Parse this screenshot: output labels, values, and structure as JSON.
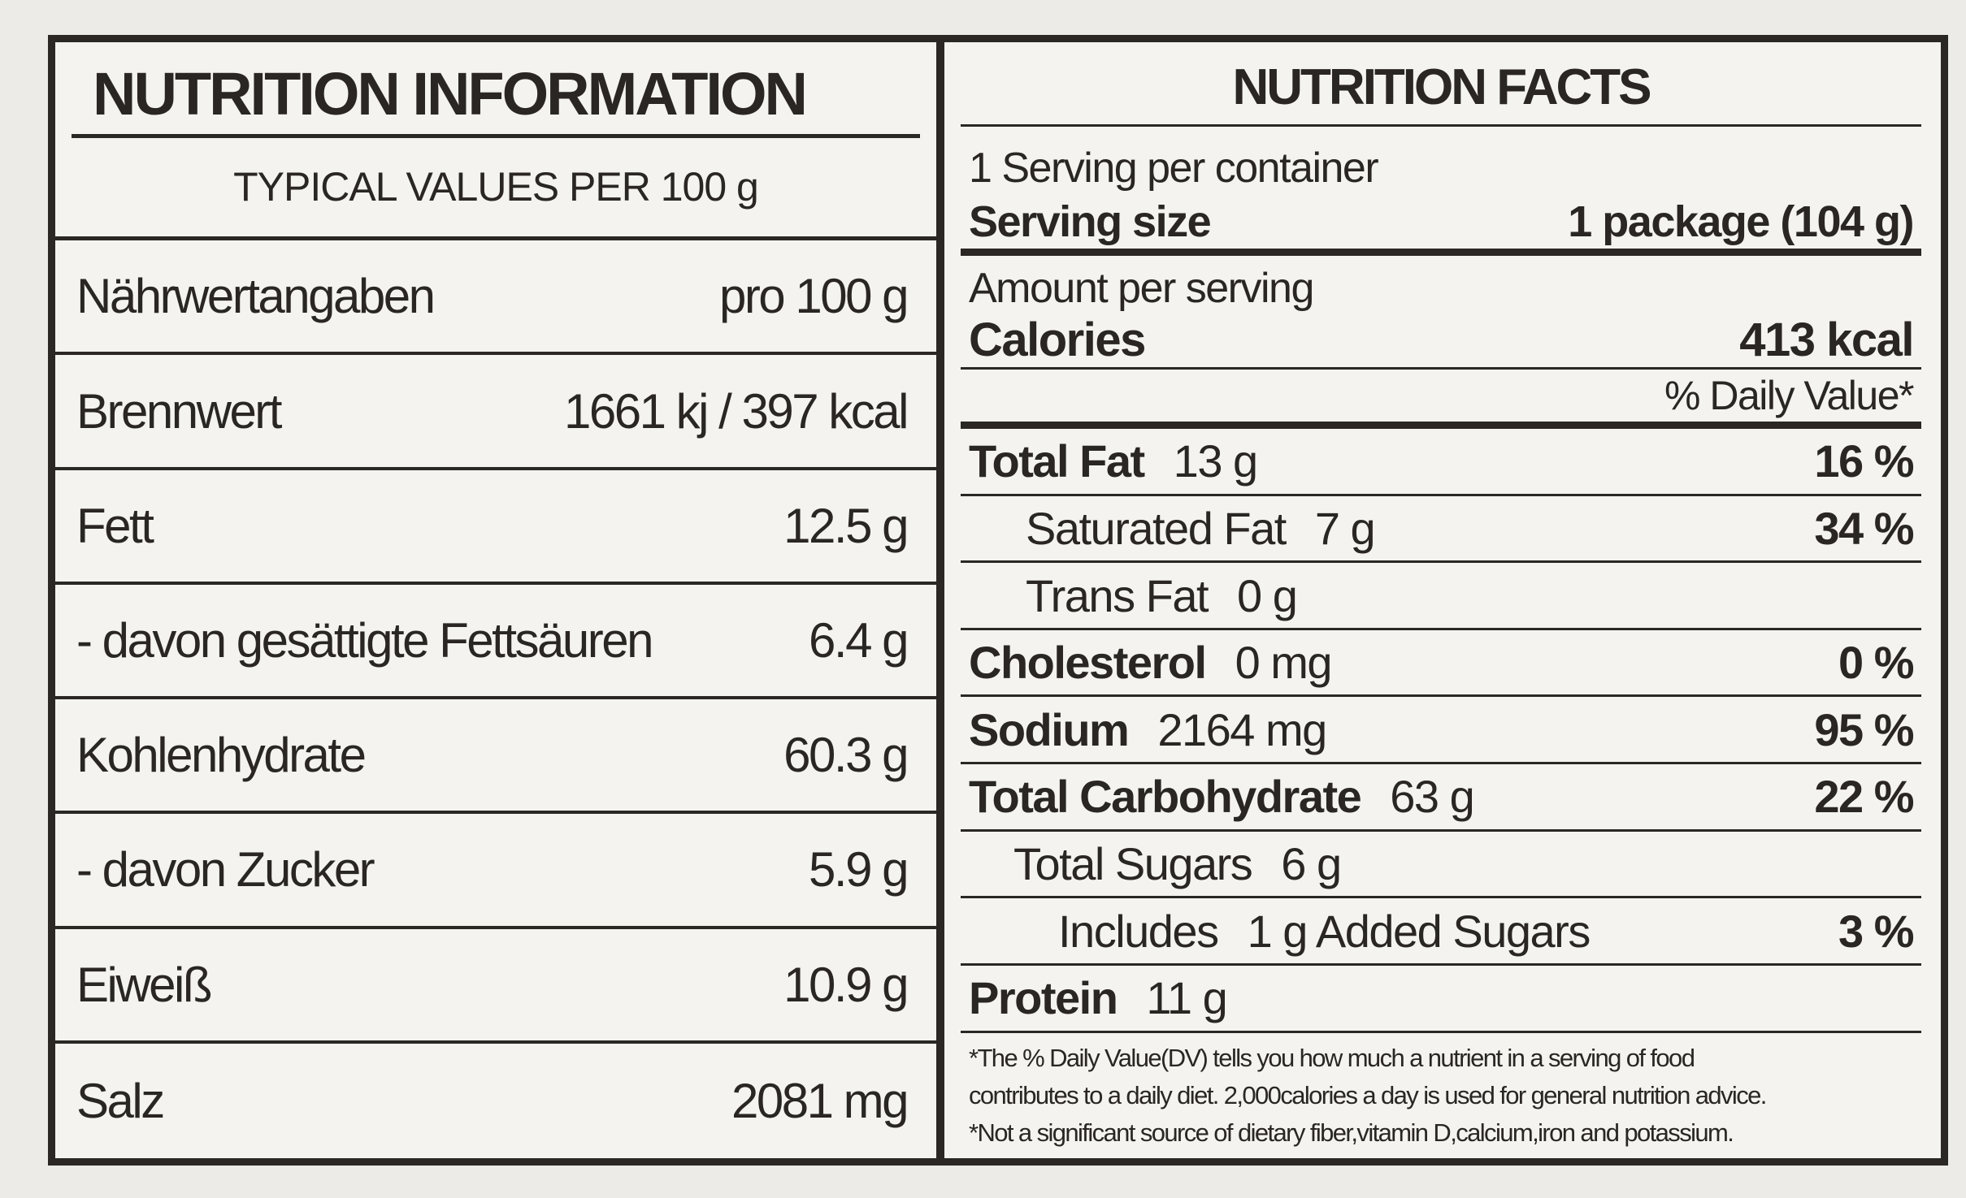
{
  "left": {
    "title": "NUTRITION INFORMATION",
    "subtitle": "TYPICAL VALUES PER 100 g",
    "rows": [
      [
        "Nährwertangaben",
        "pro 100 g"
      ],
      [
        "Brennwert",
        "1661 kj / 397 kcal"
      ],
      [
        "Fett",
        "12.5 g"
      ],
      [
        "- davon gesättigte Fettsäuren",
        "6.4 g"
      ],
      [
        "Kohlenhydrate",
        "60.3 g"
      ],
      [
        "- davon Zucker",
        "5.9 g"
      ],
      [
        "Eiweiß",
        "10.9 g"
      ],
      [
        "Salz",
        "2081 mg"
      ]
    ]
  },
  "right": {
    "title": "NUTRITION FACTS",
    "servings": "1 Serving per container",
    "serving_size_label": "Serving size",
    "serving_size": "1 package (104 g)",
    "amount_per_serving": "Amount per serving",
    "calories_label": "Calories",
    "calories": "413 kcal",
    "dv_header": "% Daily Value*",
    "nutrients": [
      {
        "name": "Total Fat",
        "amount": "13 g",
        "dv": "16 %"
      },
      {
        "name": "Saturated Fat",
        "amount": "7 g",
        "dv": "34 %"
      },
      {
        "name": "Trans Fat",
        "amount": "0 g"
      },
      {
        "name": "Cholesterol",
        "amount": "0 mg",
        "dv": "0 %"
      },
      {
        "name": "Sodium",
        "amount": "2164 mg",
        "dv": "95 %"
      },
      {
        "name": "Total Carbohydrate",
        "amount": "63 g",
        "dv": "22 %"
      },
      {
        "name": "Total Sugars",
        "amount": "6 g"
      },
      {
        "name": "Includes",
        "amount": "1 g Added Sugars",
        "dv": "3 %"
      },
      {
        "name": "Protein",
        "amount": "11 g"
      }
    ],
    "footnotes": [
      "*The % Daily Value(DV) tells you how much a nutrient in a serving of food",
      "contributes to a daily diet. 2,000calories a day is used for general nutrition advice.",
      "*Not a significant source of dietary fiber,vitamin D,calcium,iron and potassium."
    ]
  }
}
